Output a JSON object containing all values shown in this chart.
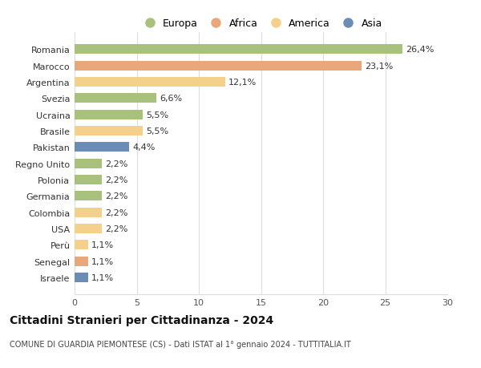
{
  "countries": [
    "Romania",
    "Marocco",
    "Argentina",
    "Svezia",
    "Ucraina",
    "Brasile",
    "Pakistan",
    "Regno Unito",
    "Polonia",
    "Germania",
    "Colombia",
    "USA",
    "Perù",
    "Senegal",
    "Israele"
  ],
  "values": [
    26.4,
    23.1,
    12.1,
    6.6,
    5.5,
    5.5,
    4.4,
    2.2,
    2.2,
    2.2,
    2.2,
    2.2,
    1.1,
    1.1,
    1.1
  ],
  "labels": [
    "26,4%",
    "23,1%",
    "12,1%",
    "6,6%",
    "5,5%",
    "5,5%",
    "4,4%",
    "2,2%",
    "2,2%",
    "2,2%",
    "2,2%",
    "2,2%",
    "1,1%",
    "1,1%",
    "1,1%"
  ],
  "continents": [
    "Europa",
    "Africa",
    "America",
    "Europa",
    "Europa",
    "America",
    "Asia",
    "Europa",
    "Europa",
    "Europa",
    "America",
    "America",
    "America",
    "Africa",
    "Asia"
  ],
  "colors": {
    "Europa": "#a8c17c",
    "Africa": "#e8a87c",
    "America": "#f5d08a",
    "Asia": "#6b8db5"
  },
  "legend_order": [
    "Europa",
    "Africa",
    "America",
    "Asia"
  ],
  "title": "Cittadini Stranieri per Cittadinanza - 2024",
  "subtitle": "COMUNE DI GUARDIA PIEMONTESE (CS) - Dati ISTAT al 1° gennaio 2024 - TUTTITALIA.IT",
  "xlim": [
    0,
    30
  ],
  "xticks": [
    0,
    5,
    10,
    15,
    20,
    25,
    30
  ],
  "background_color": "#ffffff",
  "grid_color": "#dddddd",
  "label_fontsize": 8,
  "tick_fontsize": 8,
  "title_fontsize": 10,
  "subtitle_fontsize": 7
}
